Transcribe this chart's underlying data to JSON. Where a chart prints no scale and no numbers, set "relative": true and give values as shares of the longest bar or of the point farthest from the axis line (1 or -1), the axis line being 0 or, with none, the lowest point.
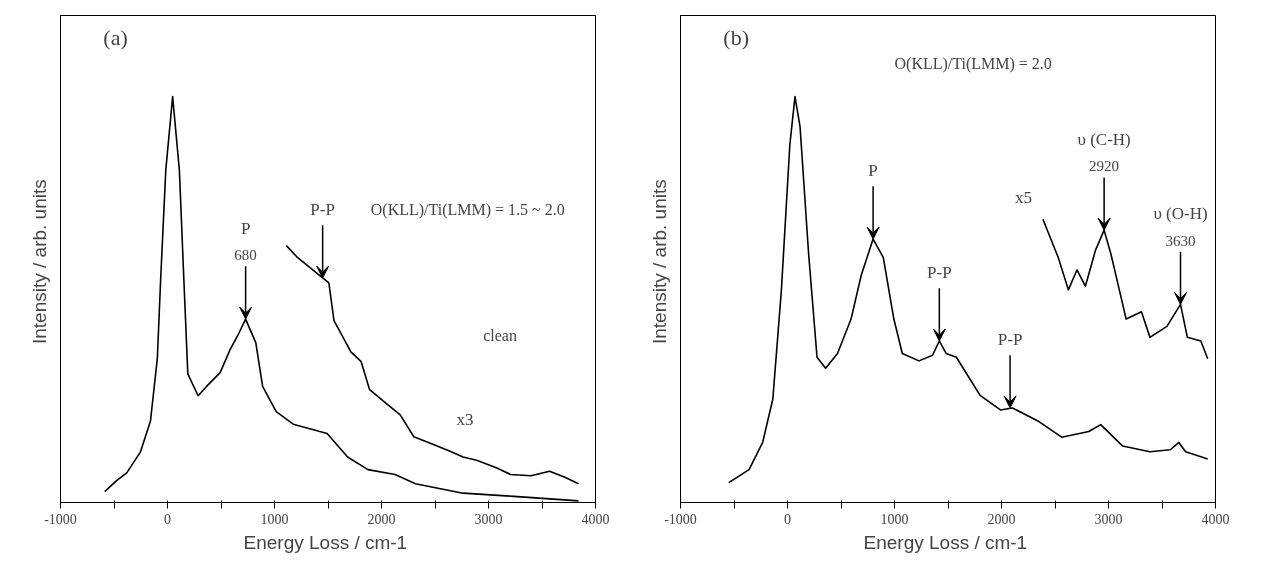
{
  "chart_data": [
    {
      "type": "line",
      "title": "(a)",
      "xlabel": "Energy Loss  / cm-1",
      "ylabel": "Intensity  / arb. units",
      "relative": true,
      "tick_labels": "x",
      "grid": false,
      "xlim": [
        -1000,
        4000
      ],
      "xticks": [
        -1000,
        {
          "value": -500,
          "label": null
        },
        0,
        {
          "value": 500,
          "label": null
        },
        1000,
        {
          "value": 1500,
          "label": null
        },
        2000,
        {
          "value": 2500,
          "label": null
        },
        3000,
        {
          "value": 3500,
          "label": null
        },
        4000
      ],
      "series": [
        {
          "color": "#000000",
          "x": [
            -587,
            -476,
            -381,
            -254,
            -159,
            -95,
            -63,
            -16,
            48,
            111,
            159,
            190,
            286,
            365,
            492,
            587,
            667,
            730,
            825,
            889,
            1016,
            1175,
            1492,
            1683,
            1873,
            2127,
            2317,
            2762,
            3238,
            3841
          ],
          "values": [
            0.027,
            0.054,
            0.073,
            0.124,
            0.201,
            0.355,
            0.556,
            0.819,
            1.0,
            0.819,
            0.51,
            0.317,
            0.263,
            0.286,
            0.32,
            0.378,
            0.417,
            0.452,
            0.394,
            0.286,
            0.224,
            0.193,
            0.17,
            0.112,
            0.081,
            0.069,
            0.046,
            0.023,
            0.015,
            0.004
          ]
        },
        {
          "name": "x3",
          "color": "#000000",
          "x": [
            1111,
            1206,
            1349,
            1508,
            1556,
            1714,
            1810,
            1889,
            2032,
            2175,
            2302,
            2444,
            2635,
            2762,
            2889,
            3079,
            3206,
            3397,
            3571,
            3714,
            3841
          ],
          "values": [
            0.633,
            0.606,
            0.575,
            0.541,
            0.448,
            0.371,
            0.347,
            0.278,
            0.247,
            0.216,
            0.162,
            0.147,
            0.127,
            0.112,
            0.104,
            0.085,
            0.069,
            0.066,
            0.077,
            0.062,
            0.046
          ]
        }
      ],
      "annotations": [
        "O(KLL)/Ti(LMM) = 1.5 ~ 2.0",
        "clean",
        {
          "text": "P\n680",
          "x": 730,
          "y": 0.452
        },
        {
          "text": "P-P",
          "x": 1450,
          "y": 0.553
        }
      ]
    },
    {
      "type": "line",
      "title": "(b)",
      "xlabel": "Energy Loss  / cm-1",
      "ylabel": "Intensity  / arb. units",
      "relative": true,
      "tick_labels": "x",
      "grid": false,
      "xlim": [
        -1000,
        4000
      ],
      "xticks": [
        -1000,
        {
          "value": -500,
          "label": null
        },
        0,
        {
          "value": 500,
          "label": null
        },
        1000,
        {
          "value": 1500,
          "label": null
        },
        2000,
        {
          "value": 2500,
          "label": null
        },
        3000,
        {
          "value": 3500,
          "label": null
        },
        4000
      ],
      "series": [
        {
          "color": "#000000",
          "x": [
            -549,
            -359,
            -232,
            -137,
            -57,
            22,
            70,
            117,
            197,
            276,
            356,
            467,
            594,
            689,
            800,
            895,
            994,
            1073,
            1229,
            1356,
            1419,
            1483,
            1578,
            1800,
            1990,
            2102,
            2340,
            2562,
            2816,
            2927,
            3133,
            3387,
            3578,
            3657,
            3721,
            3927
          ],
          "values": [
            0.049,
            0.081,
            0.148,
            0.255,
            0.524,
            0.882,
            1.0,
            0.927,
            0.614,
            0.358,
            0.331,
            0.367,
            0.452,
            0.56,
            0.649,
            0.604,
            0.452,
            0.367,
            0.349,
            0.363,
            0.398,
            0.367,
            0.358,
            0.264,
            0.228,
            0.233,
            0.201,
            0.161,
            0.175,
            0.192,
            0.139,
            0.125,
            0.13,
            0.148,
            0.125,
            0.107
          ]
        },
        {
          "name": "x5",
          "color": "#000000",
          "x": [
            2387,
            2530,
            2625,
            2705,
            2784,
            2879,
            2959,
            3022,
            3165,
            3308,
            3387,
            3546,
            3673,
            3737,
            3863,
            3927
          ],
          "values": [
            0.698,
            0.604,
            0.524,
            0.573,
            0.533,
            0.622,
            0.671,
            0.613,
            0.452,
            0.47,
            0.407,
            0.434,
            0.488,
            0.407,
            0.398,
            0.354
          ]
        }
      ],
      "annotations": [
        "O(KLL)/Ti(LMM) = 2.0",
        {
          "text": "P",
          "x": 800,
          "y": 0.649
        },
        {
          "text": "P-P",
          "x": 1419,
          "y": 0.398
        },
        {
          "text": "P-P",
          "x": 2080,
          "y": 0.233
        },
        {
          "text": "υ (C-H)\n2920",
          "x": 2959,
          "y": 0.671
        },
        {
          "text": "υ (O-H)\n3630",
          "x": 3673,
          "y": 0.488
        }
      ]
    }
  ]
}
